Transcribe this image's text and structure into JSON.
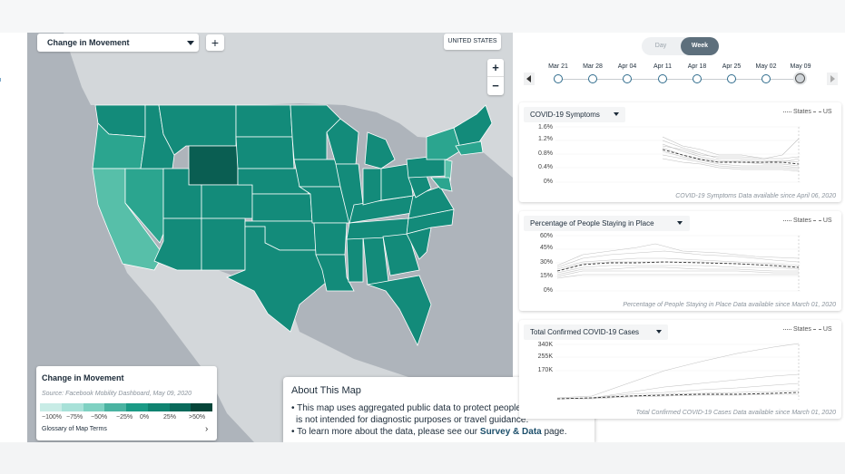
{
  "map": {
    "metric_selector": "Change in Movement",
    "add_label": "+",
    "region_button": "UNITED STATES",
    "zoom_in": "+",
    "zoom_out": "−",
    "colors": {
      "water": "#aeb4bb",
      "land": "#d3d7da",
      "base": "#138b7a",
      "dark": "#0a5e52",
      "light": "#2ba58f",
      "lighter": "#57bfa9"
    }
  },
  "legend": {
    "title": "Change in Movement",
    "source": "Source: Facebook Mobility Dashboard, May 09, 2020",
    "swatches": [
      "#c8ece6",
      "#a8e1d8",
      "#7fd1c2",
      "#4ab3a1",
      "#1a9a85",
      "#0f8370",
      "#0a6a5b",
      "#064539"
    ],
    "ticks": [
      "−100%",
      "−75%",
      "−50%",
      "−25%",
      "0%",
      "25%",
      ">50%"
    ],
    "glossary": "Glossary of Map Terms"
  },
  "about": {
    "title": "About This Map",
    "close": "✕",
    "bullet1_line1": "• This map uses aggregated public data to protect people's privacy, and",
    "bullet1_line2": "is not intended for diagnostic purposes or travel guidance.",
    "bullet2_prefix": "• To learn more about the data, please see our",
    "bullet2_link": "Survey & Data",
    "bullet2_suffix": "page."
  },
  "toggle": {
    "day": "Day",
    "week": "Week",
    "selected": "Week"
  },
  "timeline": {
    "dates": [
      "Mar 21",
      "Mar 28",
      "Apr 04",
      "Apr 11",
      "Apr 18",
      "Apr 25",
      "May 02",
      "May 09"
    ],
    "selected": "May 09"
  },
  "cards": [
    {
      "title": "COVID-19 Symptoms",
      "legend_states": "States",
      "legend_us": "US",
      "yticks": [
        "1.6%",
        "1.2%",
        "0.8%",
        "0.4%",
        "0%"
      ],
      "note": "COVID-19 Symptoms Data available since April 06, 2020"
    },
    {
      "title": "Percentage of People Staying in Place",
      "legend_states": "States",
      "legend_us": "US",
      "yticks": [
        "60%",
        "45%",
        "30%",
        "15%",
        "0%"
      ],
      "note": "Percentage of People Staying in Place Data available since March 01, 2020"
    },
    {
      "title": "Total Confirmed COVID-19 Cases",
      "legend_states": "States",
      "legend_us": "US",
      "yticks": [
        "340K",
        "255K",
        "170K"
      ],
      "note": "Total Confirmed COVID-19 Cases Data available since March 01, 2020"
    }
  ]
}
